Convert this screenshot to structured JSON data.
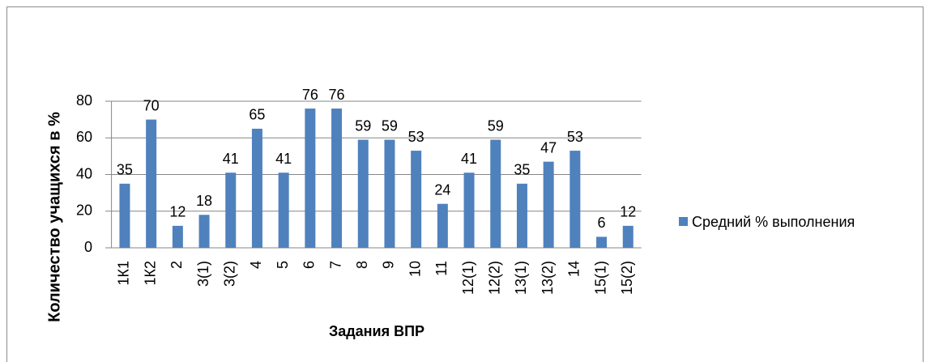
{
  "chart_data": {
    "type": "bar",
    "categories": [
      "1К1",
      "1К2",
      "2",
      "3(1)",
      "3(2)",
      "4",
      "5",
      "6",
      "7",
      "8",
      "9",
      "10",
      "11",
      "12(1)",
      "12(2)",
      "13(1)",
      "13(2)",
      "14",
      "15(1)",
      "15(2)"
    ],
    "series": [
      {
        "name": "Средний % выполнения",
        "color": "#4f81bd",
        "values": [
          35,
          70,
          12,
          18,
          41,
          65,
          41,
          76,
          76,
          59,
          59,
          53,
          24,
          41,
          59,
          35,
          47,
          53,
          6,
          12
        ]
      }
    ],
    "ylim": [
      0,
      80
    ],
    "yticks": [
      0,
      20,
      40,
      60,
      80
    ],
    "grid": true,
    "x_label": "Задания ВПР",
    "y_label": "Количество учащихся в %",
    "legend": "right"
  }
}
